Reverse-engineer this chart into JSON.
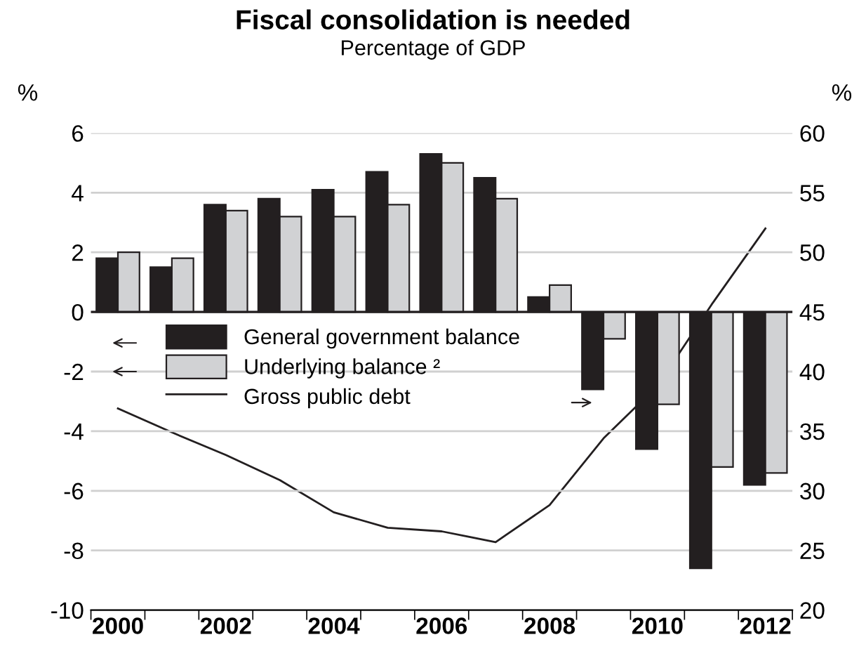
{
  "chart_data": {
    "type": "bar",
    "title": "Fiscal consolidation is needed",
    "subtitle": "Percentage of GDP",
    "ylabel": "%",
    "y2label": "%",
    "categories": [
      "2000",
      null,
      "2002",
      null,
      "2004",
      null,
      "2006",
      null,
      "2008",
      null,
      "2010",
      null,
      "2012"
    ],
    "series": [
      {
        "name": "General government balance",
        "color": "#231f20",
        "values": [
          1.8,
          1.5,
          3.6,
          3.8,
          4.1,
          4.7,
          5.3,
          4.5,
          0.5,
          -2.6,
          -4.6,
          -8.6,
          -5.8
        ]
      },
      {
        "name": "Underlying balance ²",
        "color": "#d1d2d4",
        "values": [
          2.0,
          1.8,
          3.4,
          3.2,
          3.2,
          3.6,
          5.0,
          3.8,
          0.9,
          -0.9,
          -3.1,
          -5.2,
          -5.4
        ]
      },
      {
        "name": "Gross public debt",
        "type": "line",
        "axis": "y2",
        "color": "#231f20",
        "values": [
          36.9,
          34.9,
          33.0,
          30.9,
          28.2,
          26.9,
          26.6,
          25.7,
          28.8,
          34.4,
          38.8,
          45.6,
          52.0
        ]
      }
    ],
    "ylim": [
      -10,
      6
    ],
    "yticks": [
      -10,
      -8,
      -6,
      -4,
      -2,
      0,
      2,
      4,
      6
    ],
    "y2lim": [
      20,
      60
    ],
    "y2ticks": [
      20,
      25,
      30,
      35,
      40,
      45,
      50,
      55,
      60
    ],
    "grid": "y",
    "legend": "center left"
  }
}
